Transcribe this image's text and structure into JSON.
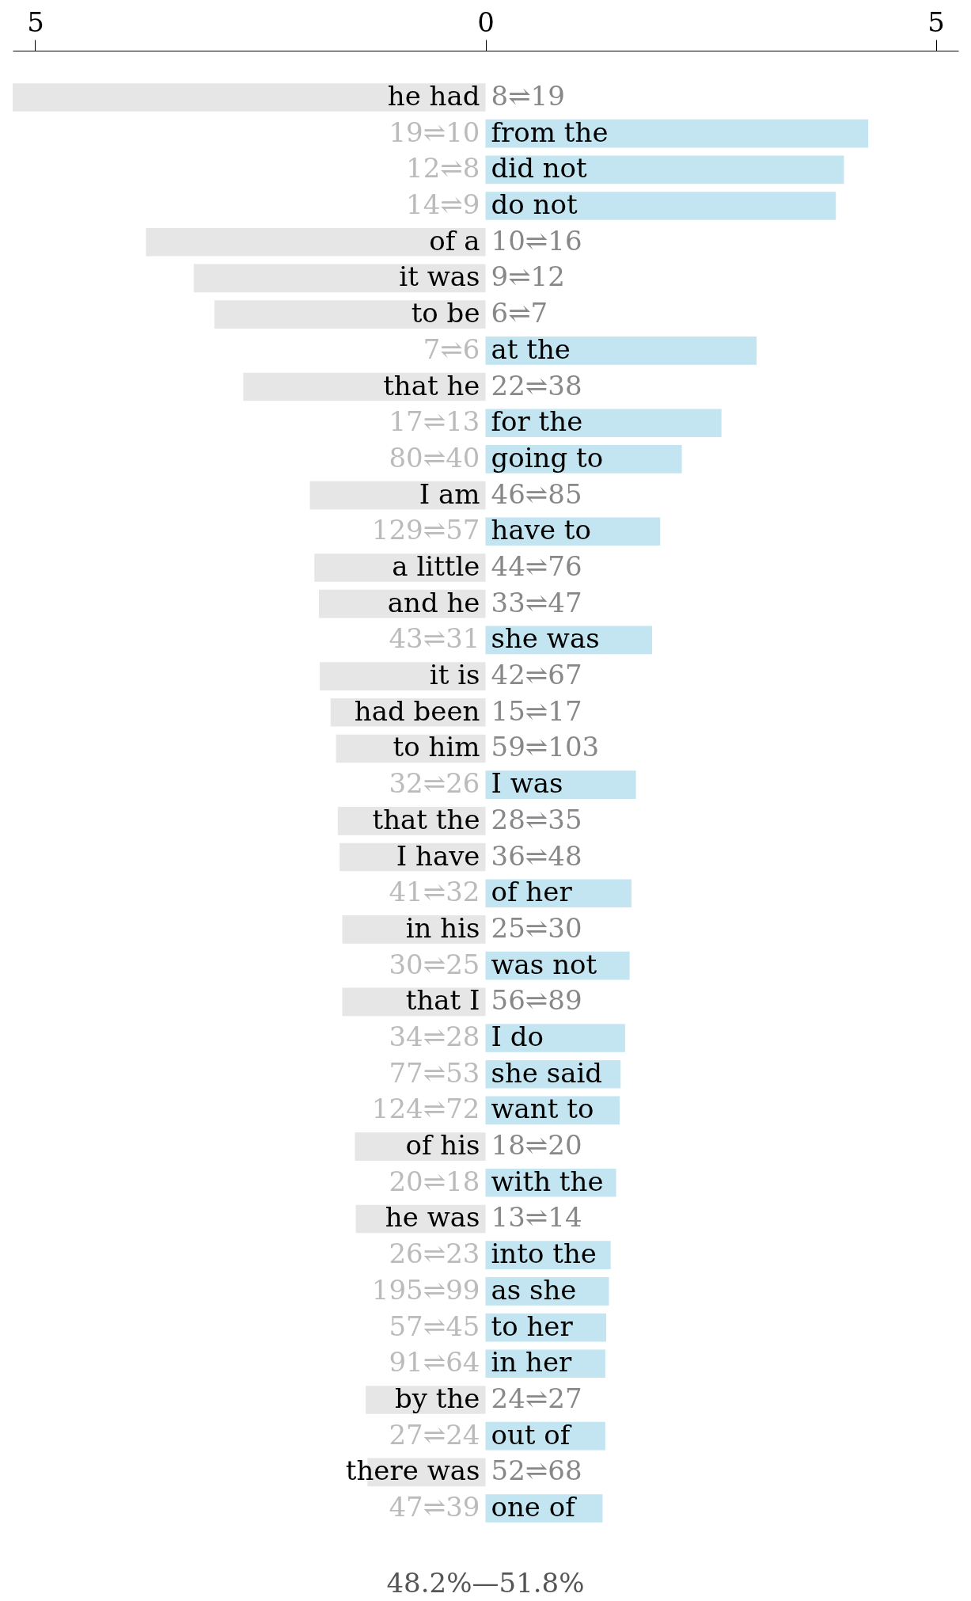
{
  "chart_data": {
    "type": "bar",
    "orientation": "horizontal",
    "categories": [
      "he had",
      "from the",
      "did not",
      "do not",
      "of a",
      "it was",
      "to be",
      "at the",
      "that he",
      "for the",
      "going to",
      "I am",
      "have to",
      "a little",
      "and he",
      "she was",
      "it is",
      "had been",
      "to him",
      "I was",
      "that the",
      "I have",
      "of her",
      "in his",
      "was not",
      "that I",
      "I do",
      "she said",
      "want to",
      "of his",
      "with the",
      "he was",
      "into the",
      "as she",
      "to her",
      "in her",
      "by the",
      "out of",
      "there was",
      "one of"
    ],
    "values": [
      -5.25,
      4.25,
      3.98,
      3.89,
      -3.77,
      -3.24,
      -3.01,
      3.01,
      -2.69,
      2.62,
      2.18,
      -1.95,
      1.94,
      -1.9,
      -1.85,
      1.85,
      -1.84,
      -1.72,
      -1.66,
      1.67,
      -1.64,
      -1.62,
      1.62,
      -1.59,
      1.6,
      -1.59,
      1.55,
      1.5,
      1.49,
      -1.45,
      1.45,
      -1.44,
      1.39,
      1.37,
      1.34,
      1.33,
      -1.33,
      1.33,
      -1.31,
      1.3
    ],
    "colors": [
      "#e6e6e6",
      "#c2e5f1",
      "#c2e5f1",
      "#c2e5f1",
      "#e6e6e6",
      "#e6e6e6",
      "#e6e6e6",
      "#c2e5f1",
      "#e6e6e6",
      "#c2e5f1",
      "#c2e5f1",
      "#e6e6e6",
      "#c2e5f1",
      "#e6e6e6",
      "#e6e6e6",
      "#c2e5f1",
      "#e6e6e6",
      "#e6e6e6",
      "#e6e6e6",
      "#c2e5f1",
      "#e6e6e6",
      "#e6e6e6",
      "#c2e5f1",
      "#e6e6e6",
      "#c2e5f1",
      "#e6e6e6",
      "#c2e5f1",
      "#c2e5f1",
      "#c2e5f1",
      "#e6e6e6",
      "#c2e5f1",
      "#e6e6e6",
      "#c2e5f1",
      "#c2e5f1",
      "#c2e5f1",
      "#c2e5f1",
      "#e6e6e6",
      "#c2e5f1",
      "#e6e6e6",
      "#c2e5f1"
    ],
    "xlim": [
      -5.25,
      5.25
    ],
    "xticks": [
      {
        "value": -5,
        "label": "5"
      },
      0,
      {
        "value": 5,
        "label": "5"
      }
    ],
    "tick_labels": "x",
    "grid": false,
    "annotations": [
      "8⇌19",
      "19⇌10",
      "12⇌8",
      "14⇌9",
      "10⇌16",
      "9⇌12",
      "6⇌7",
      "7⇌6",
      "22⇌38",
      "17⇌13",
      "80⇌40",
      "46⇌85",
      "129⇌57",
      "44⇌76",
      "33⇌47",
      "43⇌31",
      "42⇌67",
      "15⇌17",
      "59⇌103",
      "32⇌26",
      "28⇌35",
      "36⇌48",
      "41⇌32",
      "25⇌30",
      "30⇌25",
      "56⇌89",
      "34⇌28",
      "77⇌53",
      "124⇌72",
      "18⇌20",
      "20⇌18",
      "13⇌14",
      "26⇌23",
      "195⇌99",
      "57⇌45",
      "91⇌64",
      "24⇌27",
      "27⇌24",
      "52⇌68",
      "47⇌39",
      "48.2%—51.8%"
    ]
  }
}
